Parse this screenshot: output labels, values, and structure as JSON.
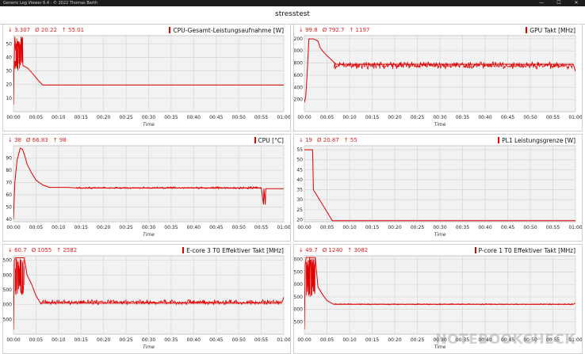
{
  "window": {
    "app_title": "Generic Log Viewer 6.4 - © 2022 Thomas Barth",
    "minimize_glyph": "—",
    "maximize_glyph": "☐",
    "close_glyph": "✕"
  },
  "header": {
    "title": "stresstest"
  },
  "watermark": "NOTEBOOKCHECK",
  "colors": {
    "series": "#e00000",
    "grid": "#d9d9d9",
    "plot_bg": "#f2f2f2"
  },
  "chart_data": [
    {
      "type": "line",
      "title": "CPU-Gesamt-Leistungsaufnahme [W]",
      "stats": {
        "min": "↓ 3.307",
        "avg": "Ø 20.22",
        "max": "↑ 55.01"
      },
      "xlabel": "Time",
      "x_ticks": [
        "00:00",
        "00:05",
        "00:10",
        "00:15",
        "00:20",
        "00:25",
        "00:30",
        "00:35",
        "00:40",
        "00:45",
        "00:50",
        "00:55",
        "01:00"
      ],
      "xlim": [
        0,
        60
      ],
      "ylim": [
        0,
        56
      ],
      "y_ticks": [
        10,
        20,
        30,
        40,
        50
      ],
      "noise": {
        "x_from": 0.3,
        "x_to": 2.0,
        "low": 30,
        "high": 55
      },
      "series": [
        {
          "x": [
            0,
            0.1,
            0.3,
            0.5,
            1.0,
            1.5,
            2.0,
            2.1,
            2.6,
            3.2,
            4.5,
            5.5,
            6.5,
            60
          ],
          "y": [
            5,
            30,
            55,
            45,
            52,
            40,
            55,
            34,
            33,
            32,
            27,
            23,
            19.6,
            19.6
          ]
        }
      ]
    },
    {
      "type": "line",
      "title": "GPU Takt [MHz]",
      "stats": {
        "min": "↓ 99.8",
        "avg": "Ø 792.7",
        "max": "↑ 1197"
      },
      "xlabel": "Time",
      "x_ticks": [
        "00:00",
        "00:05",
        "00:10",
        "00:15",
        "00:20",
        "00:25",
        "00:30",
        "00:35",
        "00:40",
        "00:45",
        "00:50",
        "00:55",
        "01:00"
      ],
      "xlim": [
        0,
        60
      ],
      "ylim": [
        0,
        1250
      ],
      "y_ticks": [
        200,
        400,
        600,
        800,
        1000,
        1200
      ],
      "noise": {
        "x_from": 6.5,
        "x_to": 59.5,
        "low": 700,
        "high": 820
      },
      "series": [
        {
          "x": [
            0,
            0.3,
            0.6,
            1.0,
            2.0,
            3.0,
            3.5,
            4.0,
            5.0,
            6.0,
            7.0,
            59.5,
            60
          ],
          "y": [
            150,
            250,
            600,
            1197,
            1197,
            1160,
            1050,
            1000,
            920,
            850,
            780,
            780,
            660
          ]
        }
      ]
    },
    {
      "type": "line",
      "title": "CPU [°C]",
      "stats": {
        "min": "↓ 38",
        "avg": "Ø 66.83",
        "max": "↑ 98"
      },
      "xlabel": "Time",
      "x_ticks": [
        "00:00",
        "00:05",
        "00:10",
        "00:15",
        "00:20",
        "00:25",
        "00:30",
        "00:35",
        "00:40",
        "00:45",
        "00:50",
        "00:55",
        "01:00"
      ],
      "xlim": [
        0,
        60
      ],
      "ylim": [
        38,
        100
      ],
      "y_ticks": [
        40,
        50,
        60,
        70,
        80,
        90
      ],
      "noise": {
        "x_from": 14,
        "x_to": 55,
        "low": 64.8,
        "high": 66.5
      },
      "series": [
        {
          "x": [
            0,
            0.3,
            0.8,
            1.5,
            2.0,
            2.5,
            3.0,
            4.0,
            5.0,
            6.5,
            8.0,
            12.0,
            14.0,
            55.0,
            55.5,
            55.6,
            55.9,
            56.0,
            60
          ],
          "y": [
            40,
            70,
            88,
            98,
            97,
            92,
            85,
            78,
            72,
            68,
            66,
            66,
            65.5,
            65.5,
            52,
            65,
            52,
            65,
            65
          ]
        }
      ]
    },
    {
      "type": "line",
      "title": "PL1 Leistungsgrenze [W]",
      "stats": {
        "min": "↓ 19",
        "avg": "Ø 20.87",
        "max": "↑ 55"
      },
      "xlabel": "Time",
      "x_ticks": [
        "00:00",
        "00:05",
        "00:10",
        "00:15",
        "00:20",
        "00:25",
        "00:30",
        "00:35",
        "00:40",
        "00:45",
        "00:50",
        "00:55",
        "01:00"
      ],
      "xlim": [
        0,
        60
      ],
      "ylim": [
        19,
        57
      ],
      "y_ticks": [
        20,
        25,
        30,
        35,
        40,
        45,
        50,
        55
      ],
      "series": [
        {
          "x": [
            0,
            0.2,
            1.8,
            2.0,
            6.2,
            60
          ],
          "y": [
            55,
            55,
            55,
            35,
            19.5,
            19.5
          ]
        }
      ]
    },
    {
      "type": "line",
      "title": "E-core 3 T0 Effektiver Takt [MHz]",
      "stats": {
        "min": "↓ 60.7",
        "avg": "Ø 1055",
        "max": "↑ 2582"
      },
      "xlabel": "Time",
      "x_ticks": [
        "00:00",
        "00:05",
        "00:10",
        "00:15",
        "00:20",
        "00:25",
        "00:30",
        "00:35",
        "00:40",
        "00:45",
        "00:50",
        "00:55",
        "01:00"
      ],
      "xlim": [
        0,
        60
      ],
      "ylim": [
        0,
        2650
      ],
      "y_ticks": [
        500,
        1000,
        1500,
        2000,
        2500
      ],
      "noise": {
        "x_from": 0.4,
        "x_to": 2.4,
        "low": 1300,
        "high": 2582
      },
      "noise2": {
        "x_from": 6.0,
        "x_to": 59.5,
        "low": 1000,
        "high": 1170
      },
      "series": [
        {
          "x": [
            0,
            0.2,
            0.4,
            2.4,
            3.0,
            4.0,
            5.0,
            6.0,
            59.5,
            60
          ],
          "y": [
            150,
            2500,
            2582,
            2582,
            2000,
            1700,
            1300,
            1050,
            1050,
            1250
          ]
        }
      ]
    },
    {
      "type": "line",
      "title": "P-core 1 T0 Effektiver Takt [MHz]",
      "stats": {
        "min": "↓ 49.7",
        "avg": "Ø 1240",
        "max": "↑ 3082"
      },
      "xlabel": "Time",
      "x_ticks": [
        "00:00",
        "00:05",
        "00:10",
        "00:15",
        "00:20",
        "00:25",
        "00:30",
        "00:35",
        "00:40",
        "00:45",
        "00:50",
        "00:55",
        "01:00"
      ],
      "xlim": [
        0,
        60
      ],
      "ylim": [
        0,
        3150
      ],
      "y_ticks": [
        500,
        1000,
        1500,
        2000,
        2500,
        3000
      ],
      "noise": {
        "x_from": 0.4,
        "x_to": 2.4,
        "low": 1500,
        "high": 3082
      },
      "noise2": {
        "x_from": 6.5,
        "x_to": 59.5,
        "low": 1180,
        "high": 1230
      },
      "series": [
        {
          "x": [
            0,
            0.2,
            0.4,
            2.4,
            3.0,
            4.0,
            5.0,
            6.5,
            59.5,
            60
          ],
          "y": [
            200,
            2800,
            3082,
            3082,
            1900,
            1600,
            1350,
            1200,
            1200,
            1250
          ]
        }
      ]
    }
  ]
}
